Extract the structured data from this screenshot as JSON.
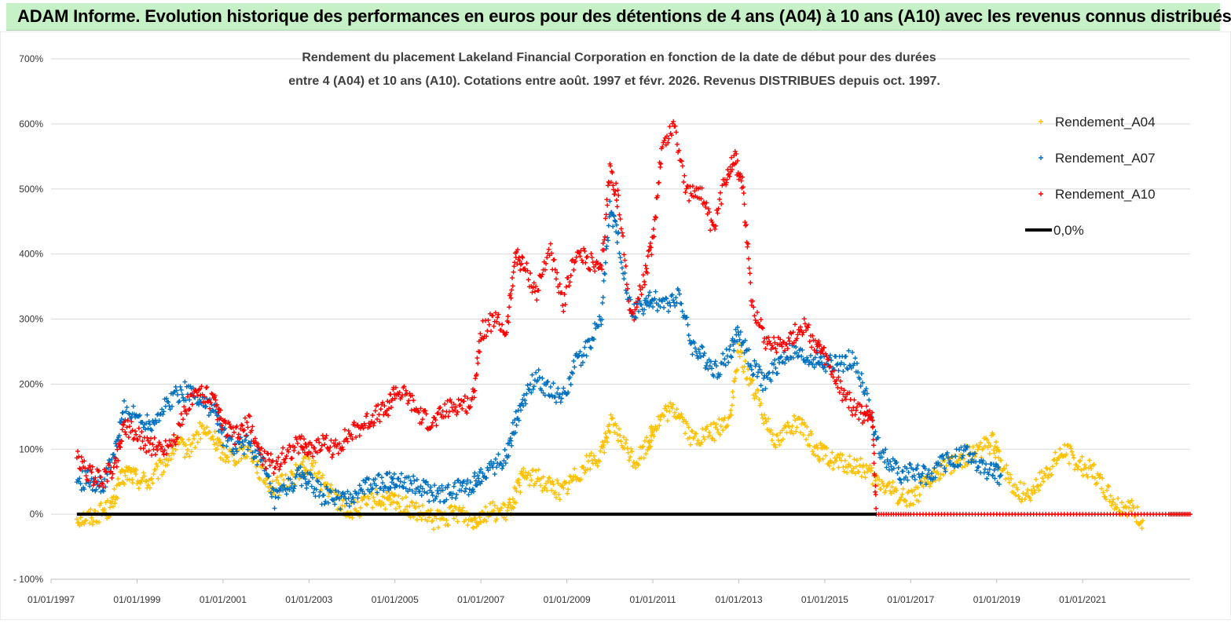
{
  "banner": {
    "title": "ADAM Informe. Evolution historique des performances en euros pour des détentions de 4 ans (A04) à 10 ans (A10) avec les revenus connus distribués",
    "background": "#c6f0c6"
  },
  "chart_data": {
    "type": "scatter",
    "title_line1": "Rendement du placement Lakeland Financial Corporation en fonction de la date de début pour des durées",
    "title_line2": "entre 4 (A04) et 10 ans (A10). Cotations entre août. 1997 et févr. 2026. Revenus DISTRIBUES depuis oct. 1997.",
    "xlabel": "",
    "ylabel": "",
    "xlim": [
      1997.0,
      2023.5
    ],
    "ylim": [
      -100,
      700
    ],
    "y_ticks": [
      {
        "value": -100,
        "label": "- 100%"
      },
      {
        "value": 0,
        "label": "0%"
      },
      {
        "value": 100,
        "label": "100%"
      },
      {
        "value": 200,
        "label": "200%"
      },
      {
        "value": 300,
        "label": "300%"
      },
      {
        "value": 400,
        "label": "400%"
      },
      {
        "value": 500,
        "label": "500%"
      },
      {
        "value": 600,
        "label": "600%"
      },
      {
        "value": 700,
        "label": "700%"
      }
    ],
    "x_ticks": [
      {
        "value": 1997,
        "label": "01/01/1997"
      },
      {
        "value": 1999,
        "label": "01/01/1999"
      },
      {
        "value": 2001,
        "label": "01/01/2001"
      },
      {
        "value": 2003,
        "label": "01/01/2003"
      },
      {
        "value": 2005,
        "label": "01/01/2005"
      },
      {
        "value": 2007,
        "label": "01/01/2007"
      },
      {
        "value": 2009,
        "label": "01/01/2009"
      },
      {
        "value": 2011,
        "label": "01/01/2011"
      },
      {
        "value": 2013,
        "label": "01/01/2013"
      },
      {
        "value": 2015,
        "label": "01/01/2015"
      },
      {
        "value": 2017,
        "label": "01/01/2017"
      },
      {
        "value": 2019,
        "label": "01/01/2019"
      },
      {
        "value": 2021,
        "label": "01/01/2021"
      }
    ],
    "legend_position": "top-right",
    "series": [
      {
        "name": "Rendement_A04",
        "color": "#ffc000",
        "marker": "+",
        "points": [
          [
            1997.6,
            -5
          ],
          [
            1997.9,
            -5
          ],
          [
            1998.2,
            5
          ],
          [
            1998.4,
            10
          ],
          [
            1998.6,
            50
          ],
          [
            1998.8,
            65
          ],
          [
            1999.0,
            55
          ],
          [
            1999.3,
            50
          ],
          [
            1999.6,
            75
          ],
          [
            1999.9,
            105
          ],
          [
            2000.2,
            100
          ],
          [
            2000.5,
            130
          ],
          [
            2000.8,
            115
          ],
          [
            2001.0,
            95
          ],
          [
            2001.3,
            90
          ],
          [
            2001.6,
            105
          ],
          [
            2001.9,
            60
          ],
          [
            2002.2,
            40
          ],
          [
            2002.5,
            50
          ],
          [
            2002.8,
            70
          ],
          [
            2003.0,
            80
          ],
          [
            2003.3,
            50
          ],
          [
            2003.6,
            25
          ],
          [
            2003.9,
            5
          ],
          [
            2004.2,
            10
          ],
          [
            2004.5,
            25
          ],
          [
            2004.8,
            20
          ],
          [
            2005.0,
            20
          ],
          [
            2005.3,
            10
          ],
          [
            2005.6,
            0
          ],
          [
            2005.9,
            -10
          ],
          [
            2006.2,
            -5
          ],
          [
            2006.5,
            5
          ],
          [
            2006.8,
            -10
          ],
          [
            2007.0,
            0
          ],
          [
            2007.3,
            5
          ],
          [
            2007.6,
            0
          ],
          [
            2007.8,
            30
          ],
          [
            2008.0,
            60
          ],
          [
            2008.3,
            55
          ],
          [
            2008.6,
            45
          ],
          [
            2008.9,
            35
          ],
          [
            2009.2,
            60
          ],
          [
            2009.5,
            80
          ],
          [
            2009.8,
            90
          ],
          [
            2010.0,
            140
          ],
          [
            2010.3,
            110
          ],
          [
            2010.6,
            80
          ],
          [
            2010.9,
            110
          ],
          [
            2011.0,
            130
          ],
          [
            2011.3,
            155
          ],
          [
            2011.6,
            160
          ],
          [
            2011.9,
            115
          ],
          [
            2012.2,
            120
          ],
          [
            2012.5,
            130
          ],
          [
            2012.8,
            150
          ],
          [
            2013.0,
            250
          ],
          [
            2013.3,
            200
          ],
          [
            2013.6,
            150
          ],
          [
            2013.9,
            110
          ],
          [
            2014.2,
            140
          ],
          [
            2014.5,
            130
          ],
          [
            2014.8,
            100
          ],
          [
            2015.0,
            90
          ],
          [
            2015.3,
            80
          ],
          [
            2015.6,
            75
          ],
          [
            2015.9,
            70
          ],
          [
            2016.2,
            50
          ],
          [
            2016.5,
            40
          ],
          [
            2016.8,
            25
          ],
          [
            2017.1,
            30
          ],
          [
            2017.4,
            45
          ],
          [
            2017.7,
            70
          ],
          [
            2018.0,
            80
          ],
          [
            2018.3,
            90
          ],
          [
            2018.6,
            100
          ],
          [
            2018.9,
            110
          ],
          [
            2019.1,
            80
          ],
          [
            2019.4,
            40
          ],
          [
            2019.7,
            30
          ],
          [
            2020.0,
            50
          ],
          [
            2020.3,
            75
          ],
          [
            2020.6,
            100
          ],
          [
            2020.9,
            75
          ],
          [
            2021.2,
            70
          ],
          [
            2021.5,
            40
          ],
          [
            2021.8,
            15
          ],
          [
            2022.1,
            10
          ],
          [
            2022.4,
            -10
          ]
        ]
      },
      {
        "name": "Rendement_A07",
        "color": "#0070c0",
        "marker": "+",
        "points": [
          [
            1997.6,
            50
          ],
          [
            1997.9,
            55
          ],
          [
            1998.2,
            40
          ],
          [
            1998.5,
            100
          ],
          [
            1998.7,
            160
          ],
          [
            1999.0,
            150
          ],
          [
            1999.3,
            140
          ],
          [
            1999.6,
            160
          ],
          [
            1999.9,
            185
          ],
          [
            2000.2,
            190
          ],
          [
            2000.5,
            175
          ],
          [
            2000.8,
            160
          ],
          [
            2001.0,
            120
          ],
          [
            2001.3,
            100
          ],
          [
            2001.6,
            110
          ],
          [
            2001.9,
            80
          ],
          [
            2002.2,
            20
          ],
          [
            2002.5,
            40
          ],
          [
            2002.8,
            60
          ],
          [
            2003.0,
            50
          ],
          [
            2003.3,
            30
          ],
          [
            2003.6,
            25
          ],
          [
            2003.9,
            20
          ],
          [
            2004.2,
            40
          ],
          [
            2004.5,
            45
          ],
          [
            2004.8,
            50
          ],
          [
            2005.0,
            55
          ],
          [
            2005.3,
            50
          ],
          [
            2005.6,
            40
          ],
          [
            2005.9,
            30
          ],
          [
            2006.2,
            30
          ],
          [
            2006.5,
            40
          ],
          [
            2006.8,
            45
          ],
          [
            2007.0,
            60
          ],
          [
            2007.3,
            75
          ],
          [
            2007.6,
            90
          ],
          [
            2007.8,
            140
          ],
          [
            2008.0,
            180
          ],
          [
            2008.3,
            210
          ],
          [
            2008.6,
            190
          ],
          [
            2008.9,
            180
          ],
          [
            2009.2,
            230
          ],
          [
            2009.5,
            260
          ],
          [
            2009.8,
            300
          ],
          [
            2010.0,
            470
          ],
          [
            2010.2,
            420
          ],
          [
            2010.5,
            310
          ],
          [
            2010.8,
            320
          ],
          [
            2011.0,
            330
          ],
          [
            2011.3,
            320
          ],
          [
            2011.6,
            340
          ],
          [
            2011.9,
            260
          ],
          [
            2012.2,
            240
          ],
          [
            2012.5,
            220
          ],
          [
            2012.8,
            250
          ],
          [
            2013.0,
            280
          ],
          [
            2013.3,
            230
          ],
          [
            2013.6,
            200
          ],
          [
            2013.9,
            230
          ],
          [
            2014.2,
            250
          ],
          [
            2014.5,
            240
          ],
          [
            2014.8,
            240
          ],
          [
            2015.0,
            230
          ],
          [
            2015.3,
            230
          ],
          [
            2015.6,
            240
          ],
          [
            2015.9,
            200
          ],
          [
            2016.2,
            110
          ],
          [
            2016.5,
            80
          ],
          [
            2016.8,
            60
          ],
          [
            2017.1,
            65
          ],
          [
            2017.4,
            60
          ],
          [
            2017.7,
            75
          ],
          [
            2018.0,
            85
          ],
          [
            2018.3,
            95
          ],
          [
            2018.6,
            70
          ],
          [
            2018.9,
            65
          ],
          [
            2019.1,
            60
          ]
        ]
      },
      {
        "name": "Rendement_A10",
        "color": "#ff0000",
        "marker": "+",
        "points": [
          [
            1997.6,
            85
          ],
          [
            1997.9,
            60
          ],
          [
            1998.2,
            55
          ],
          [
            1998.5,
            75
          ],
          [
            1998.7,
            140
          ],
          [
            1999.0,
            120
          ],
          [
            1999.3,
            105
          ],
          [
            1999.6,
            100
          ],
          [
            1999.9,
            120
          ],
          [
            2000.2,
            170
          ],
          [
            2000.5,
            190
          ],
          [
            2000.8,
            170
          ],
          [
            2001.0,
            135
          ],
          [
            2001.3,
            120
          ],
          [
            2001.6,
            140
          ],
          [
            2001.9,
            90
          ],
          [
            2002.2,
            75
          ],
          [
            2002.5,
            95
          ],
          [
            2002.8,
            110
          ],
          [
            2003.0,
            100
          ],
          [
            2003.3,
            110
          ],
          [
            2003.6,
            100
          ],
          [
            2003.9,
            120
          ],
          [
            2004.2,
            135
          ],
          [
            2004.5,
            150
          ],
          [
            2004.8,
            160
          ],
          [
            2005.0,
            190
          ],
          [
            2005.3,
            180
          ],
          [
            2005.6,
            150
          ],
          [
            2005.9,
            140
          ],
          [
            2006.2,
            160
          ],
          [
            2006.5,
            170
          ],
          [
            2006.8,
            170
          ],
          [
            2007.0,
            280
          ],
          [
            2007.3,
            300
          ],
          [
            2007.6,
            280
          ],
          [
            2007.8,
            400
          ],
          [
            2008.0,
            380
          ],
          [
            2008.3,
            340
          ],
          [
            2008.6,
            410
          ],
          [
            2008.9,
            320
          ],
          [
            2009.2,
            400
          ],
          [
            2009.5,
            390
          ],
          [
            2009.8,
            370
          ],
          [
            2010.0,
            530
          ],
          [
            2010.2,
            480
          ],
          [
            2010.5,
            300
          ],
          [
            2010.8,
            360
          ],
          [
            2011.0,
            420
          ],
          [
            2011.2,
            560
          ],
          [
            2011.5,
            600
          ],
          [
            2011.8,
            490
          ],
          [
            2012.1,
            500
          ],
          [
            2012.4,
            430
          ],
          [
            2012.7,
            520
          ],
          [
            2012.9,
            550
          ],
          [
            2013.1,
            500
          ],
          [
            2013.3,
            330
          ],
          [
            2013.6,
            270
          ],
          [
            2013.9,
            260
          ],
          [
            2014.2,
            270
          ],
          [
            2014.5,
            290
          ],
          [
            2014.8,
            260
          ],
          [
            2015.0,
            240
          ],
          [
            2015.3,
            200
          ],
          [
            2015.6,
            170
          ],
          [
            2015.9,
            150
          ],
          [
            2016.1,
            160
          ],
          [
            2016.2,
            0
          ],
          [
            2017.0,
            0
          ],
          [
            2018.0,
            0
          ],
          [
            2019.0,
            0
          ],
          [
            2020.0,
            0
          ],
          [
            2021.0,
            0
          ],
          [
            2022.0,
            0
          ],
          [
            2023.0,
            0
          ],
          [
            2023.5,
            0
          ]
        ]
      },
      {
        "name": "0,0%",
        "color": "#000000",
        "marker": "line",
        "points": [
          [
            1997.6,
            0
          ],
          [
            2016.2,
            0
          ]
        ]
      }
    ]
  }
}
